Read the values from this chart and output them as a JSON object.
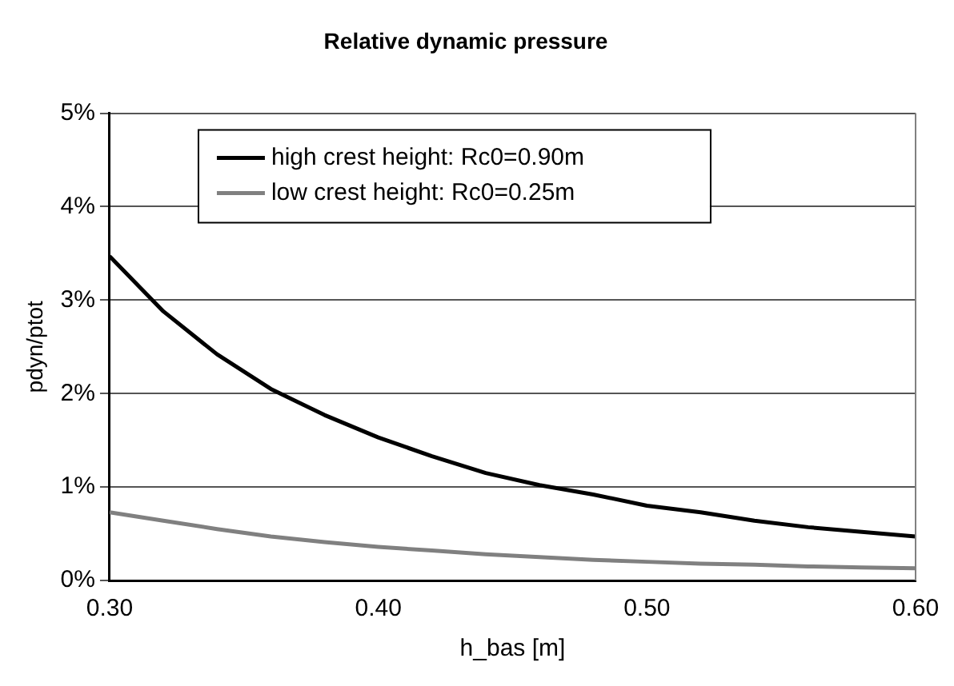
{
  "chart_data": {
    "type": "line",
    "title": "Relative dynamic pressure",
    "xlabel": "h_bas [m]",
    "ylabel": "pdyn/ptot",
    "x": [
      0.3,
      0.32,
      0.34,
      0.36,
      0.38,
      0.4,
      0.42,
      0.44,
      0.46,
      0.48,
      0.5,
      0.52,
      0.54,
      0.56,
      0.58,
      0.6
    ],
    "series": [
      {
        "name": "high crest height: Rc0=0.90m",
        "color": "#000000",
        "values": [
          3.47,
          2.88,
          2.42,
          2.05,
          1.77,
          1.53,
          1.33,
          1.15,
          1.02,
          0.92,
          0.8,
          0.73,
          0.64,
          0.57,
          0.52,
          0.47
        ]
      },
      {
        "name": "low crest height: Rc0=0.25m",
        "color": "#808080",
        "values": [
          0.73,
          0.64,
          0.55,
          0.47,
          0.41,
          0.36,
          0.32,
          0.28,
          0.25,
          0.22,
          0.2,
          0.18,
          0.17,
          0.15,
          0.14,
          0.13
        ]
      }
    ],
    "xlim": [
      0.3,
      0.6
    ],
    "xticks": [
      {
        "value": 0.3,
        "label": "0.30"
      },
      {
        "value": 0.4,
        "label": "0.40"
      },
      {
        "value": 0.5,
        "label": "0.50"
      },
      {
        "value": 0.6,
        "label": "0.60"
      }
    ],
    "ylim": [
      0,
      5
    ],
    "yticks": [
      {
        "value": 0,
        "label": "0%"
      },
      {
        "value": 1,
        "label": "1%"
      },
      {
        "value": 2,
        "label": "2%"
      },
      {
        "value": 3,
        "label": "3%"
      },
      {
        "value": 4,
        "label": "4%"
      },
      {
        "value": 5,
        "label": "5%"
      }
    ],
    "grid": "y",
    "legend": "top",
    "marker": "none",
    "line_style": "solid"
  }
}
